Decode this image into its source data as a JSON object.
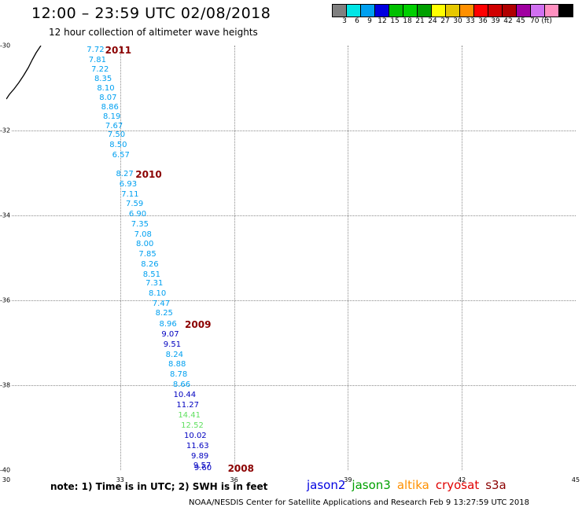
{
  "header": {
    "title": "12:00 – 23:59 UTC 02/08/2018",
    "subtitle": "12 hour collection of altimeter wave heights"
  },
  "color_scale": {
    "colors": [
      "#808080",
      "#00e5e5",
      "#00a0f0",
      "#0000e0",
      "#00c000",
      "#00d000",
      "#00a000",
      "#ffff00",
      "#e6c800",
      "#ff9000",
      "#ff0000",
      "#d00000",
      "#b00000",
      "#a000a0",
      "#d070f0",
      "#ff90c0",
      "#000000"
    ],
    "labels": [
      "3",
      "6",
      "9",
      "12",
      "15",
      "18",
      "21",
      "24",
      "27",
      "30",
      "33",
      "36",
      "39",
      "42",
      "45",
      "70 (ft)"
    ]
  },
  "axes": {
    "x_ticks": [
      "30",
      "33",
      "36",
      "39",
      "42",
      "45"
    ],
    "y_ticks": [
      "-30",
      "-32",
      "-34",
      "-36",
      "-38",
      "-40"
    ]
  },
  "observations": [
    {
      "v": "7.72",
      "lon": 32.35,
      "lat": -30.12,
      "color": "#00a0f0"
    },
    {
      "v": "7.81",
      "lon": 32.4,
      "lat": -30.36,
      "color": "#00a0f0"
    },
    {
      "v": "7.22",
      "lon": 32.47,
      "lat": -30.58,
      "color": "#00a0f0"
    },
    {
      "v": "8.35",
      "lon": 32.55,
      "lat": -30.8,
      "color": "#00a0f0"
    },
    {
      "v": "8.10",
      "lon": 32.62,
      "lat": -31.02,
      "color": "#00a0f0"
    },
    {
      "v": "8.07",
      "lon": 32.68,
      "lat": -31.24,
      "color": "#00a0f0"
    },
    {
      "v": "8.86",
      "lon": 32.73,
      "lat": -31.46,
      "color": "#00a0f0"
    },
    {
      "v": "8.19",
      "lon": 32.78,
      "lat": -31.68,
      "color": "#00a0f0"
    },
    {
      "v": "7.67",
      "lon": 32.84,
      "lat": -31.9,
      "color": "#00a0f0"
    },
    {
      "v": "7.50",
      "lon": 32.9,
      "lat": -32.12,
      "color": "#00a0f0"
    },
    {
      "v": "8.50",
      "lon": 32.95,
      "lat": -32.36,
      "color": "#00a0f0"
    },
    {
      "v": "6.57",
      "lon": 33.02,
      "lat": -32.6,
      "color": "#00a0f0"
    },
    {
      "v": "8.27",
      "lon": 33.12,
      "lat": -33.04,
      "color": "#00a0f0"
    },
    {
      "v": "6.93",
      "lon": 33.21,
      "lat": -33.28,
      "color": "#00a0f0"
    },
    {
      "v": "7.11",
      "lon": 33.26,
      "lat": -33.52,
      "color": "#00a0f0"
    },
    {
      "v": "7.59",
      "lon": 33.38,
      "lat": -33.74,
      "color": "#00a0f0"
    },
    {
      "v": "6.90",
      "lon": 33.46,
      "lat": -33.98,
      "color": "#00a0f0"
    },
    {
      "v": "7.35",
      "lon": 33.52,
      "lat": -34.22,
      "color": "#00a0f0"
    },
    {
      "v": "7.08",
      "lon": 33.6,
      "lat": -34.46,
      "color": "#00a0f0"
    },
    {
      "v": "8.00",
      "lon": 33.65,
      "lat": -34.68,
      "color": "#00a0f0"
    },
    {
      "v": "7.85",
      "lon": 33.72,
      "lat": -34.92,
      "color": "#00a0f0"
    },
    {
      "v": "8.26",
      "lon": 33.78,
      "lat": -35.16,
      "color": "#00a0f0"
    },
    {
      "v": "8.51",
      "lon": 33.83,
      "lat": -35.4,
      "color": "#00a0f0"
    },
    {
      "v": "7.31",
      "lon": 33.9,
      "lat": -35.62,
      "color": "#00a0f0"
    },
    {
      "v": "8.10",
      "lon": 33.98,
      "lat": -35.86,
      "color": "#00a0f0"
    },
    {
      "v": "7.47",
      "lon": 34.08,
      "lat": -36.1,
      "color": "#00a0f0"
    },
    {
      "v": "8.25",
      "lon": 34.16,
      "lat": -36.32,
      "color": "#00a0f0"
    },
    {
      "v": "8.96",
      "lon": 34.26,
      "lat": -36.58,
      "color": "#00a0f0"
    },
    {
      "v": "9.07",
      "lon": 34.32,
      "lat": -36.82,
      "color": "#0000c0"
    },
    {
      "v": "9.51",
      "lon": 34.37,
      "lat": -37.06,
      "color": "#0000c0"
    },
    {
      "v": "8.24",
      "lon": 34.43,
      "lat": -37.3,
      "color": "#00a0f0"
    },
    {
      "v": "8.88",
      "lon": 34.5,
      "lat": -37.52,
      "color": "#00a0f0"
    },
    {
      "v": "8.78",
      "lon": 34.54,
      "lat": -37.76,
      "color": "#00a0f0"
    },
    {
      "v": "8.66",
      "lon": 34.62,
      "lat": -38.0,
      "color": "#00a0f0"
    },
    {
      "v": "10.44",
      "lon": 34.7,
      "lat": -38.24,
      "color": "#0000c0"
    },
    {
      "v": "11.27",
      "lon": 34.78,
      "lat": -38.48,
      "color": "#0000c0"
    },
    {
      "v": "14.41",
      "lon": 34.82,
      "lat": -38.72,
      "color": "#60e060"
    },
    {
      "v": "12.52",
      "lon": 34.9,
      "lat": -38.96,
      "color": "#60e060"
    },
    {
      "v": "10.02",
      "lon": 34.98,
      "lat": -39.2,
      "color": "#0000c0"
    },
    {
      "v": "11.63",
      "lon": 35.04,
      "lat": -39.44,
      "color": "#0000c0"
    },
    {
      "v": "9.89",
      "lon": 35.1,
      "lat": -39.68,
      "color": "#0000c0"
    },
    {
      "v": "9.57",
      "lon": 35.16,
      "lat": -39.9,
      "color": "#0000c0"
    },
    {
      "v": "9.60",
      "lon": 35.18,
      "lat": -39.97,
      "color": "#0000c0"
    }
  ],
  "year_labels": [
    {
      "text": "2011",
      "lon": 32.95,
      "lat": -30.12
    },
    {
      "text": "2010",
      "lon": 33.75,
      "lat": -33.04
    },
    {
      "text": "2009",
      "lon": 35.05,
      "lat": -36.58
    },
    {
      "text": "2008",
      "lon": 36.18,
      "lat": -39.97
    }
  ],
  "note": "note:  1) Time is in UTC;  2) SWH is in feet",
  "satellites": [
    {
      "name": "jason2",
      "color": "#0000e0"
    },
    {
      "name": "jason3",
      "color": "#00a000"
    },
    {
      "name": "altika",
      "color": "#ff9000"
    },
    {
      "name": "cryosat",
      "color": "#e00000"
    },
    {
      "name": "s3a",
      "color": "#8b0000"
    }
  ],
  "footer": "NOAA/NESDIS Center for Satellite Applications and Research     Feb  9 13:27:59 UTC 2018"
}
